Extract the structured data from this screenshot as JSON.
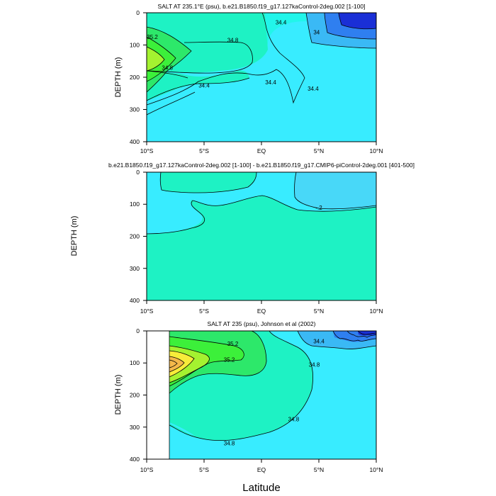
{
  "xlabel": "Latitude",
  "colors": {
    "deep_blue": "#1a2fd6",
    "blue": "#2f7ff0",
    "sky": "#3ab9f5",
    "light_sky": "#48d8f8",
    "cyan": "#38ecff",
    "aqua": "#22f5ea",
    "turquoise": "#1ef2c4",
    "green": "#2de86a",
    "bright_green": "#3cf03a",
    "lime": "#a4f230",
    "yellow": "#f7ec3a",
    "orange": "#f4b84a"
  },
  "chart_data": [
    {
      "type": "contour",
      "title": "SALT AT 235.1°E (psu), b.e21.B1850.f19_g17.127kaControl-2deg.002 [1-100]",
      "ylabel": "DEPTH (m)",
      "xlabel": "",
      "x_ticks": [
        "10°S",
        "5°S",
        "EQ",
        "5°N",
        "10°N"
      ],
      "x_values": [
        -10,
        -5,
        0,
        5,
        10
      ],
      "y_ticks": [
        "0",
        "100",
        "200",
        "300",
        "400"
      ],
      "y_values": [
        0,
        100,
        200,
        300,
        400
      ],
      "xlim": [
        -10,
        10
      ],
      "ylim": [
        400,
        0
      ],
      "contour_labels": [
        {
          "text": "35.2",
          "x": -9.5,
          "y": 75
        },
        {
          "text": "34.8",
          "x": -2.5,
          "y": 85
        },
        {
          "text": "34.8",
          "x": -8.2,
          "y": 170
        },
        {
          "text": "34.4",
          "x": -5.0,
          "y": 225
        },
        {
          "text": "34.4",
          "x": 0.8,
          "y": 215
        },
        {
          "text": "34.4",
          "x": 1.7,
          "y": 30
        },
        {
          "text": "34",
          "x": 4.8,
          "y": 60
        },
        {
          "text": "34.4",
          "x": 4.5,
          "y": 235
        }
      ]
    },
    {
      "type": "contour",
      "title": "b.e21.B1850.f19_g17.127kaControl-2deg.002 [1-100] - b.e21.B1850.f19_g17.CMIP6-piControl-2deg.001 [401-500]",
      "ylabel": "DEPTH (m)",
      "xlabel": "",
      "x_ticks": [
        "10°S",
        "5°S",
        "EQ",
        "5°N",
        "10°N"
      ],
      "x_values": [
        -10,
        -5,
        0,
        5,
        10
      ],
      "y_ticks": [
        "0",
        "100",
        "200",
        "300",
        "400"
      ],
      "y_values": [
        0,
        100,
        200,
        300,
        400
      ],
      "xlim": [
        -10,
        10
      ],
      "ylim": [
        400,
        0
      ],
      "contour_labels": [
        {
          "text": "-.2",
          "x": 5.0,
          "y": 110
        }
      ]
    },
    {
      "type": "contour",
      "title": "SALT AT 235 (psu), Johnson et al (2002)",
      "ylabel": "DEPTH (m)",
      "xlabel": "Latitude",
      "x_ticks": [
        "10°S",
        "5°S",
        "EQ",
        "5°N",
        "10°N"
      ],
      "x_values": [
        -10,
        -5,
        0,
        5,
        10
      ],
      "y_ticks": [
        "0",
        "100",
        "200",
        "300",
        "400"
      ],
      "y_values": [
        0,
        100,
        200,
        300,
        400
      ],
      "xlim": [
        -10,
        10
      ],
      "ylim": [
        400,
        0
      ],
      "contour_labels": [
        {
          "text": "35.2",
          "x": -2.5,
          "y": 40
        },
        {
          "text": "35.2",
          "x": -2.8,
          "y": 90
        },
        {
          "text": "34.8",
          "x": 4.6,
          "y": 105
        },
        {
          "text": "34.8",
          "x": 2.8,
          "y": 275
        },
        {
          "text": "34.8",
          "x": -2.8,
          "y": 350
        },
        {
          "text": "34.4",
          "x": 5.0,
          "y": 32
        }
      ]
    }
  ]
}
